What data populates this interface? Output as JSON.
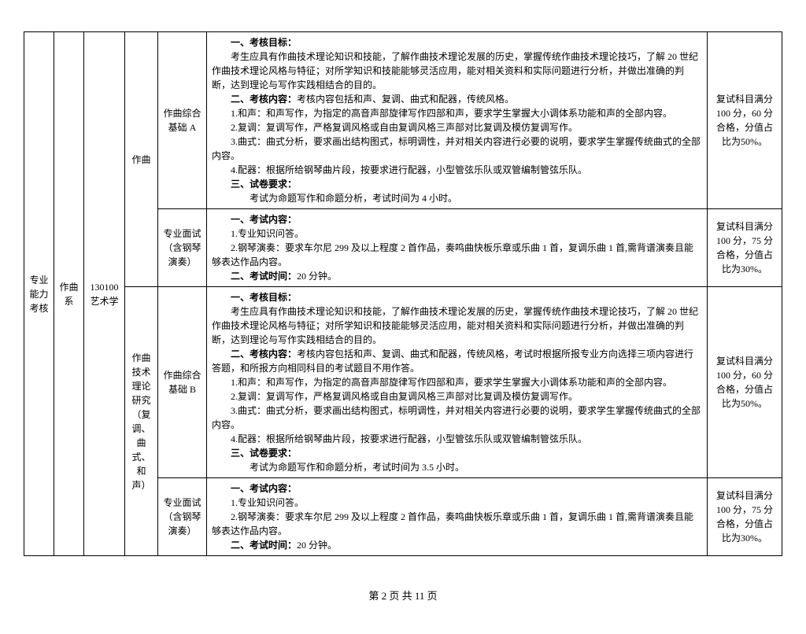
{
  "col1": "专业\n能力\n考核",
  "col2": "作曲\n系",
  "col3": "130100\n艺术学",
  "track1": "作曲",
  "track2": "作曲\n技术\n理论\n研究\n（复\n调、曲\n式、和\n声）",
  "course1a": "作曲综合\n基础 A",
  "course1b": "专业面试\n（含钢琴\n演奏）",
  "course2a": "作曲综合\n基础 B",
  "course2b": "专业面试\n（含钢琴\n演奏）",
  "content1a": "　　一、考核目标：\n　　考生应具有作曲技术理论知识和技能，了解作曲技术理论发展的历史，掌握传统作曲技术理论技巧，了解 20 世纪作曲技术理论风格与特征；对所学知识和技能能够灵活应用，能对相关资料和实际问题进行分析，并做出准确的判断，达到理论与写作实践相结合的目的。\n　　二、考核内容：考核内容包括和声、复调、曲式和配器，传统风格。\n　　1.和声：和声写作，为指定的高音声部旋律写作四部和声，要求学生掌握大小调体系功能和声的全部内容。\n　　2.复调：复调写作，严格复调风格或自由复调风格三声部对比复调及模仿复调写作。\n　　3.曲式：曲式分析，要求画出结构图式，标明调性，并对相关内容进行必要的说明，要求学生掌握传统曲式的全部内容。\n　　4.配器：根据所给钢琴曲片段，按要求进行配器，小型管弦乐队或双管编制管弦乐队。\n　　三、试卷要求：\n　　　　考试为命题写作和命题分析，考试时间为 4 小时。",
  "content1b": "　　一、考试内容：\n　　1.专业知识问答。\n　　2.钢琴演奏：要求车尔尼 299 及以上程度 2 首作品，奏鸣曲快板乐章或乐曲 1 首，复调乐曲 1 首,需背谱演奏且能够表达作品内容。\n　　二、考试时间：20 分钟。",
  "content2a": "　　一、考核目标：\n　　考生应具有作曲技术理论知识和技能，了解作曲技术理论发展的历史，掌握传统作曲技术理论技巧，了解 20 世纪作曲技术理论风格与特征；对所学知识和技能能够灵活应用，能对相关资料和实际问题进行分析，并做出准确的判断，达到理论与写作实践相结合的目的。\n　　二、考核内容：考核内容包括和声、复调、曲式和配器，传统风格，考试时根据所报专业方向选择三项内容进行答题，和所报方向相同科目的考试题目不用作答。\n　　1.和声：和声写作，为指定的高音声部旋律写作四部和声，要求学生掌握大小调体系功能和声的全部内容。\n　　2.复调：复调写作，严格复调风格或自由复调风格三声部对比复调及模仿复调写作。\n　　3.曲式：曲式分析，要求画出结构图式，标明调性，并对相关内容进行必要的说明，要求学生掌握传统曲式的全部内容。\n　　4.配器：根据所给钢琴曲片段，按要求进行配器，小型管弦乐队或双管编制管弦乐队。\n　　三、试卷要求：\n　　　　考试为命题写作和命题分析，考试时间为 3.5 小时。",
  "content2b": "　　一、考试内容：\n　　1.专业知识问答。\n　　2.钢琴演奏：要求车尔尼 299 及以上程度 2 首作品，奏鸣曲快板乐章或乐曲 1 首，复调乐曲 1 首,需背谱演奏且能够表达作品内容。\n　　二、考试时间：20 分钟。",
  "score1a": "复试科目满分100 分，60 分合格，分值占比为50%。",
  "score1b": "复试科目满分100 分，75 分合格，分值占比为30%。",
  "score2a": "复试科目满分100 分，60 分合格，分值占比为50%。",
  "score2b": "复试科目满分100 分，75 分合格，分值占比为30%。",
  "footer": "第 2 页 共 11 页"
}
